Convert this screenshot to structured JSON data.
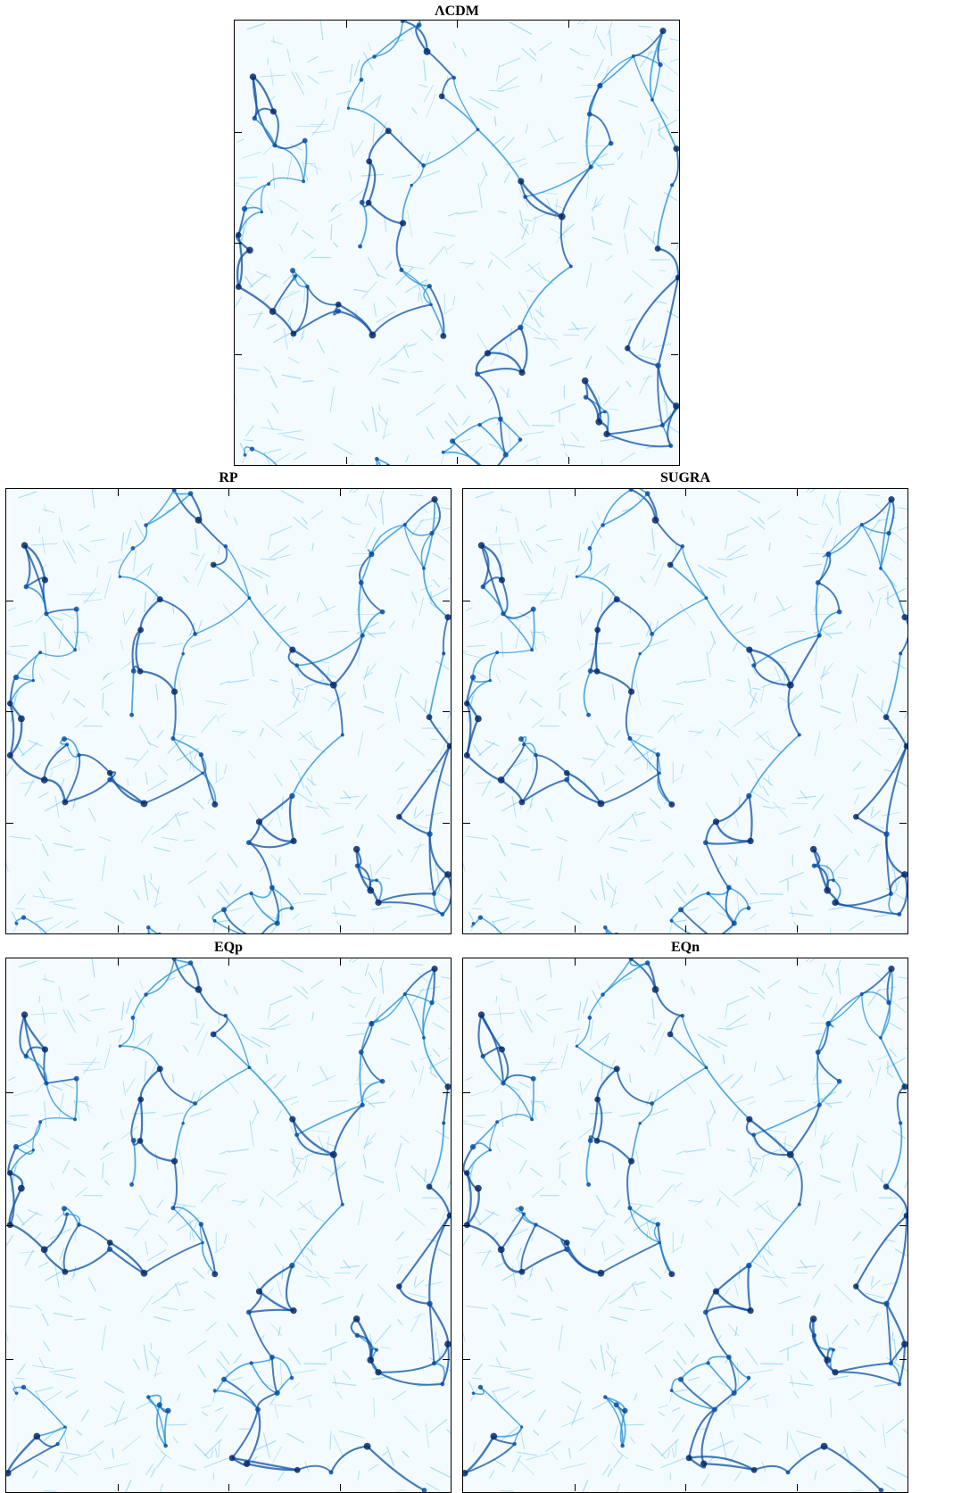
{
  "figure": {
    "panels": [
      {
        "id": "lcdm",
        "title": "ΛCDM"
      },
      {
        "id": "rp",
        "title": "RP"
      },
      {
        "id": "sugra",
        "title": "SUGRA"
      },
      {
        "id": "eqp",
        "title": "EQp"
      },
      {
        "id": "eqn",
        "title": "EQn"
      }
    ],
    "colors": {
      "background": "#f4fbfe",
      "filament_light": "#6fc8ee",
      "filament_mid": "#1e8fd6",
      "filament_dark": "#0a4fa3",
      "node": "#062a6b",
      "frame": "#000000"
    },
    "colormap": "white-to-blue density projection",
    "tick_marks": true
  }
}
